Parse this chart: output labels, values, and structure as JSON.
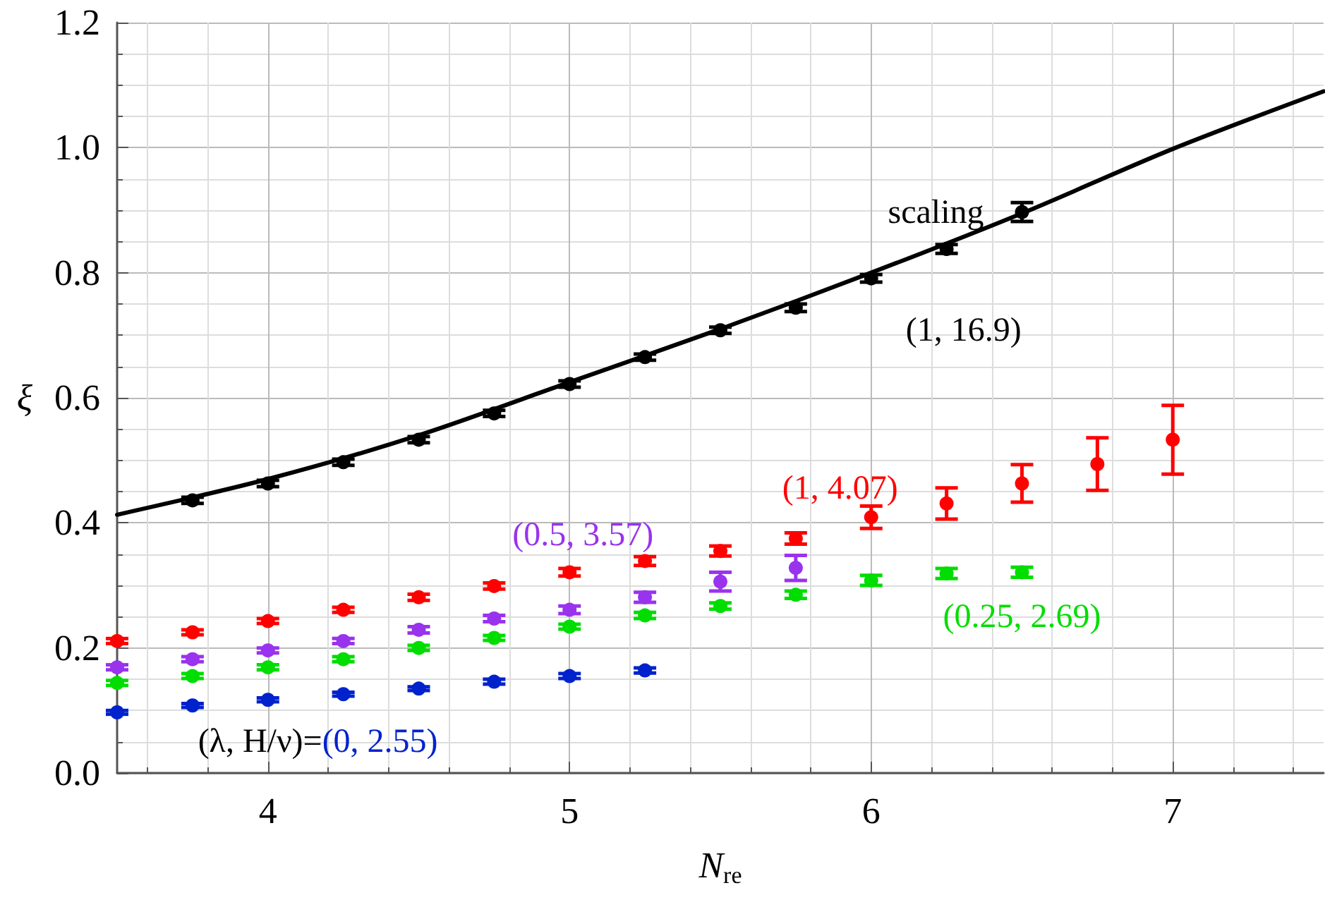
{
  "chart_data": {
    "type": "scatter",
    "xlabel": "N$_{re}$",
    "ylabel": "ξ",
    "xlim": [
      3.5,
      7.5
    ],
    "xticks": [
      4,
      5,
      6,
      7
    ],
    "ylim": [
      0,
      1.2
    ],
    "yticks": [
      {
        "value": 0,
        "label": "0.0"
      },
      {
        "value": 0.2,
        "label": "0.2"
      },
      {
        "value": 0.4,
        "label": "0.4"
      },
      {
        "value": 0.6,
        "label": "0.6"
      },
      {
        "value": 0.8,
        "label": "0.8"
      },
      {
        "value": 1.0,
        "label": "1.0"
      },
      {
        "value": 1.2,
        "label": "1.2"
      }
    ],
    "grid": true,
    "marker": "circle",
    "annotations": [
      "(λ, H/ν)="
    ],
    "series": [
      {
        "type": "line",
        "name": "scaling",
        "color": "#000000",
        "marker": "none",
        "x": [
          3.5,
          4,
          4.5,
          5,
          5.5,
          6,
          6.5,
          7,
          7.5
        ],
        "values": [
          0.413,
          0.47,
          0.54,
          0.625,
          0.71,
          0.8,
          0.895,
          0.998,
          1.09
        ]
      },
      {
        "name": "(1, 16.9)",
        "color": "#000000",
        "x": [
          3.75,
          4,
          4.25,
          4.5,
          4.75,
          5,
          5.25,
          5.5,
          5.75,
          6,
          6.25,
          6.5
        ],
        "values": [
          0.436,
          0.463,
          0.497,
          0.533,
          0.575,
          0.622,
          0.665,
          0.708,
          0.744,
          0.791,
          0.838,
          0.897
        ],
        "errors": [
          0.005,
          0.005,
          0.005,
          0.005,
          0.005,
          0.005,
          0.005,
          0.005,
          0.006,
          0.006,
          0.007,
          0.015
        ]
      },
      {
        "name": "(1, 4.07)",
        "color": "#ff0000",
        "x": [
          3.5,
          3.75,
          4,
          4.25,
          4.5,
          4.75,
          5,
          5.25,
          5.5,
          5.75,
          6,
          6.25,
          6.5,
          6.75,
          7
        ],
        "values": [
          0.211,
          0.225,
          0.243,
          0.261,
          0.281,
          0.299,
          0.321,
          0.339,
          0.355,
          0.375,
          0.409,
          0.431,
          0.463,
          0.494,
          0.533
        ],
        "errors": [
          0.004,
          0.004,
          0.004,
          0.004,
          0.005,
          0.005,
          0.006,
          0.007,
          0.008,
          0.009,
          0.018,
          0.025,
          0.03,
          0.042,
          0.055
        ]
      },
      {
        "name": "(0.5, 3.57)",
        "color": "#9933ee",
        "x": [
          3.5,
          3.75,
          4,
          4.25,
          4.5,
          4.75,
          5,
          5.25,
          5.5,
          5.75
        ],
        "values": [
          0.169,
          0.182,
          0.196,
          0.211,
          0.229,
          0.247,
          0.261,
          0.281,
          0.306,
          0.328
        ],
        "errors": [
          0.004,
          0.004,
          0.004,
          0.004,
          0.005,
          0.005,
          0.006,
          0.008,
          0.015,
          0.02
        ]
      },
      {
        "name": "(0.25, 2.69)",
        "color": "#00dd00",
        "x": [
          3.5,
          3.75,
          4,
          4.25,
          4.5,
          4.75,
          5,
          5.25,
          5.5,
          5.75,
          6,
          6.25,
          6.5
        ],
        "values": [
          0.144,
          0.155,
          0.169,
          0.182,
          0.2,
          0.216,
          0.234,
          0.252,
          0.267,
          0.285,
          0.308,
          0.319,
          0.321
        ],
        "errors": [
          0.004,
          0.004,
          0.004,
          0.004,
          0.004,
          0.004,
          0.004,
          0.005,
          0.005,
          0.006,
          0.008,
          0.008,
          0.008
        ]
      },
      {
        "name": "(0, 2.55)",
        "color": "#0022cc",
        "x": [
          3.5,
          3.75,
          4,
          4.25,
          4.5,
          4.75,
          5,
          5.25
        ],
        "values": [
          0.097,
          0.108,
          0.117,
          0.126,
          0.135,
          0.146,
          0.155,
          0.164
        ],
        "errors": [
          0.003,
          0.003,
          0.003,
          0.003,
          0.003,
          0.004,
          0.004,
          0.004
        ]
      }
    ]
  }
}
